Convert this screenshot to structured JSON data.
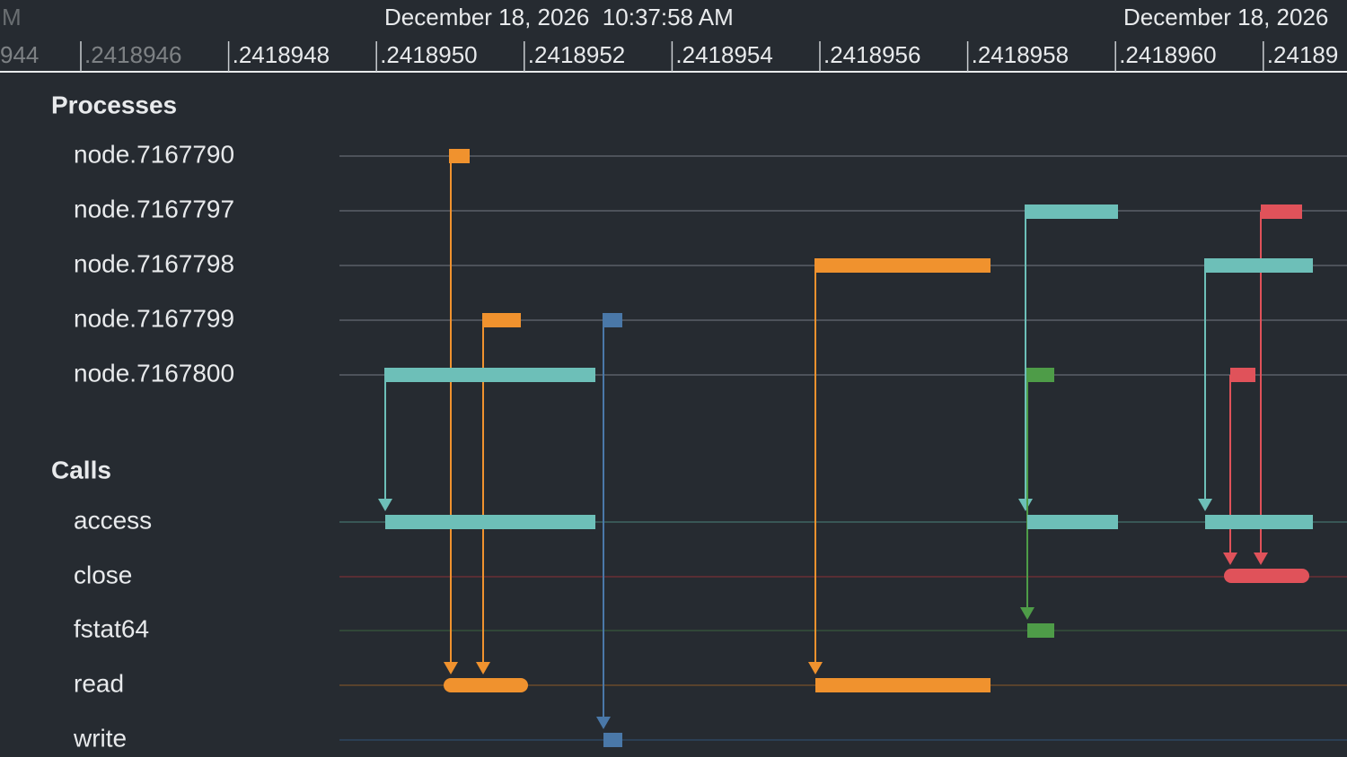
{
  "header": {
    "left_partial": "M",
    "date_center": "December 18, 2026  10:37:58 AM",
    "date_right": "December 18, 2026"
  },
  "ticks": [
    "944",
    ".2418946",
    ".2418948",
    ".2418950",
    ".2418952",
    ".2418954",
    ".2418956",
    ".2418958",
    ".2418960",
    ".24189"
  ],
  "sections": [
    {
      "title": "Processes",
      "rows": [
        "node.7167790",
        "node.7167797",
        "node.7167798",
        "node.7167799",
        "node.7167800"
      ]
    },
    {
      "title": "Calls",
      "rows": [
        "access",
        "close",
        "fstat64",
        "read",
        "write"
      ]
    }
  ]
}
